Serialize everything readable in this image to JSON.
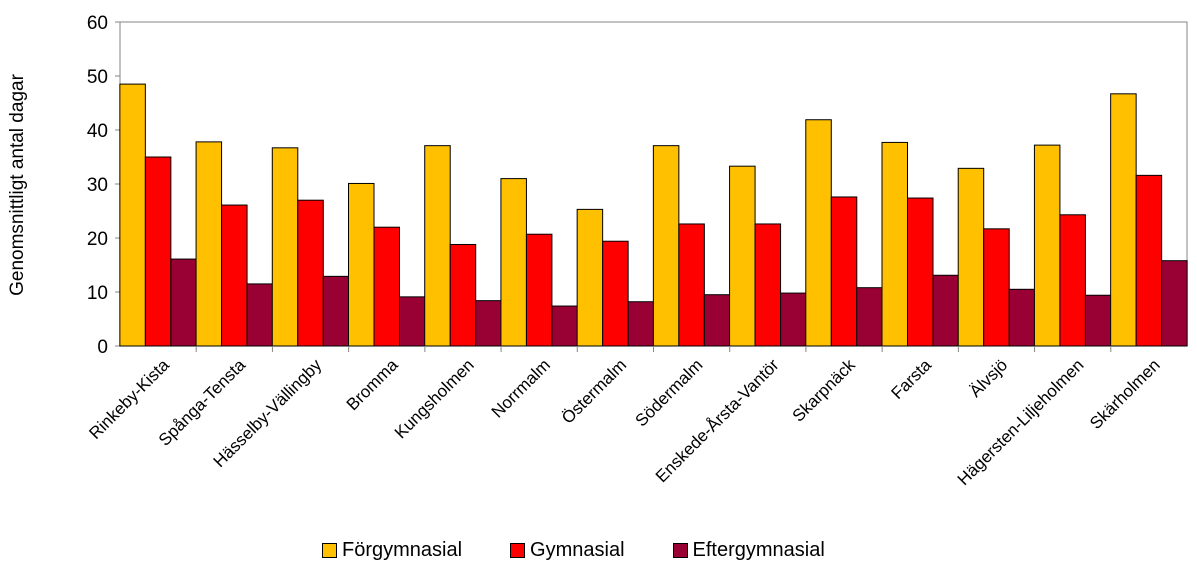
{
  "chart_data": {
    "type": "bar",
    "ylabel": "Genomsnittligt antal dagar",
    "xlabel": "",
    "ylim": [
      0,
      60
    ],
    "yticks": [
      "0",
      "10",
      "20",
      "30",
      "40",
      "50",
      "60"
    ],
    "grid": false,
    "legend_position": "bottom",
    "categories": [
      "Rinkeby-Kista",
      "Spånga-Tensta",
      "Hässelby-Vällingby",
      "Bromma",
      "Kungsholmen",
      "Norrmalm",
      "Östermalm",
      "Södermalm",
      "Enskede-Årsta-Vantör",
      "Skarpnäck",
      "Farsta",
      "Älvsjö",
      "Hägersten-Liljeholmen",
      "Skärholmen"
    ],
    "series": [
      {
        "name": "Förgymnasial",
        "color": "#FFC000",
        "values": [
          48.5,
          37.8,
          36.7,
          30.1,
          37.1,
          31.0,
          25.3,
          37.1,
          33.3,
          41.9,
          37.7,
          32.9,
          37.2,
          46.7
        ]
      },
      {
        "name": "Gymnasial",
        "color": "#FF0000",
        "values": [
          35.0,
          26.1,
          27.0,
          22.0,
          18.8,
          20.7,
          19.4,
          22.6,
          22.6,
          27.6,
          27.4,
          21.7,
          24.3,
          31.6
        ]
      },
      {
        "name": "Eftergymnasial",
        "color": "#990033",
        "values": [
          16.1,
          11.5,
          12.9,
          9.1,
          8.4,
          7.4,
          8.2,
          9.5,
          9.8,
          10.8,
          13.1,
          10.5,
          9.4,
          15.8
        ]
      }
    ]
  }
}
